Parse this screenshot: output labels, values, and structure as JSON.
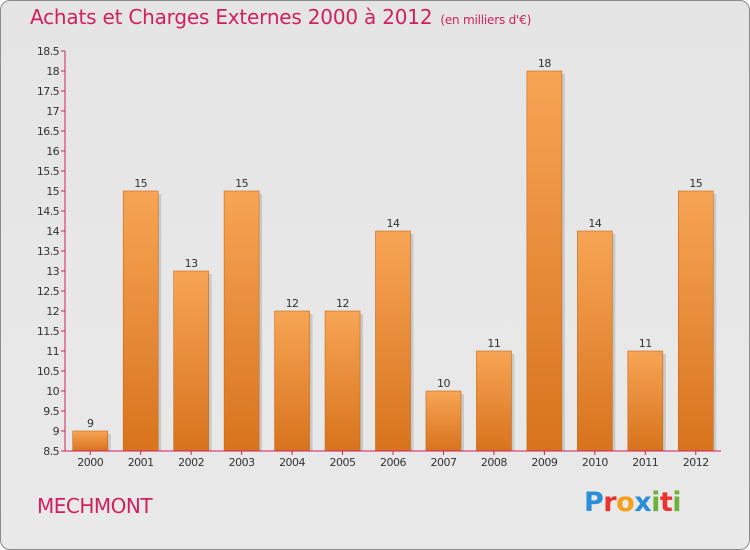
{
  "header": {
    "title": "Achats et Charges Externes 2000 à 2012",
    "unit": "(en milliers d'€)"
  },
  "footer": {
    "commune": "MECHMONT",
    "brand": "Proxiti",
    "brand_letters": [
      {
        "char": "P",
        "color": "#2a8fd6"
      },
      {
        "char": "r",
        "color": "#e8352e"
      },
      {
        "char": "o",
        "color": "#f4a01a"
      },
      {
        "char": "x",
        "color": "#2a8fd6"
      },
      {
        "char": "i",
        "color": "#6cb33e"
      },
      {
        "char": "t",
        "color": "#e8352e"
      },
      {
        "char": "i",
        "color": "#6cb33e"
      }
    ]
  },
  "colors": {
    "title": "#d1205f",
    "bar_top": "#f7a555",
    "bar_bottom": "#d8731d",
    "axis_line": "#d1205f"
  },
  "chart_data": {
    "type": "bar",
    "title": "Achats et Charges Externes 2000 à 2012",
    "categories": [
      "2000",
      "2001",
      "2002",
      "2003",
      "2004",
      "2005",
      "2006",
      "2007",
      "2008",
      "2009",
      "2010",
      "2011",
      "2012"
    ],
    "values": [
      9,
      15,
      13,
      15,
      12,
      12,
      14,
      10,
      11,
      18,
      14,
      11,
      15
    ],
    "value_labels": [
      "9",
      "15",
      "13",
      "15",
      "12",
      "12",
      "14",
      "10",
      "11",
      "18",
      "14",
      "11",
      "15"
    ],
    "ylim": [
      8.5,
      18.5
    ],
    "yticks": [
      "8.5",
      "9",
      "9.5",
      "10",
      "10.5",
      "11",
      "11.5",
      "12",
      "12.5",
      "13",
      "13.5",
      "14",
      "14.5",
      "15",
      "15.5",
      "16",
      "16.5",
      "17",
      "17.5",
      "18",
      "18.5"
    ],
    "ytick_values": [
      8.5,
      9,
      9.5,
      10,
      10.5,
      11,
      11.5,
      12,
      12.5,
      13,
      13.5,
      14,
      14.5,
      15,
      15.5,
      16,
      16.5,
      17,
      17.5,
      18,
      18.5
    ],
    "grid": false,
    "legend": "none"
  }
}
